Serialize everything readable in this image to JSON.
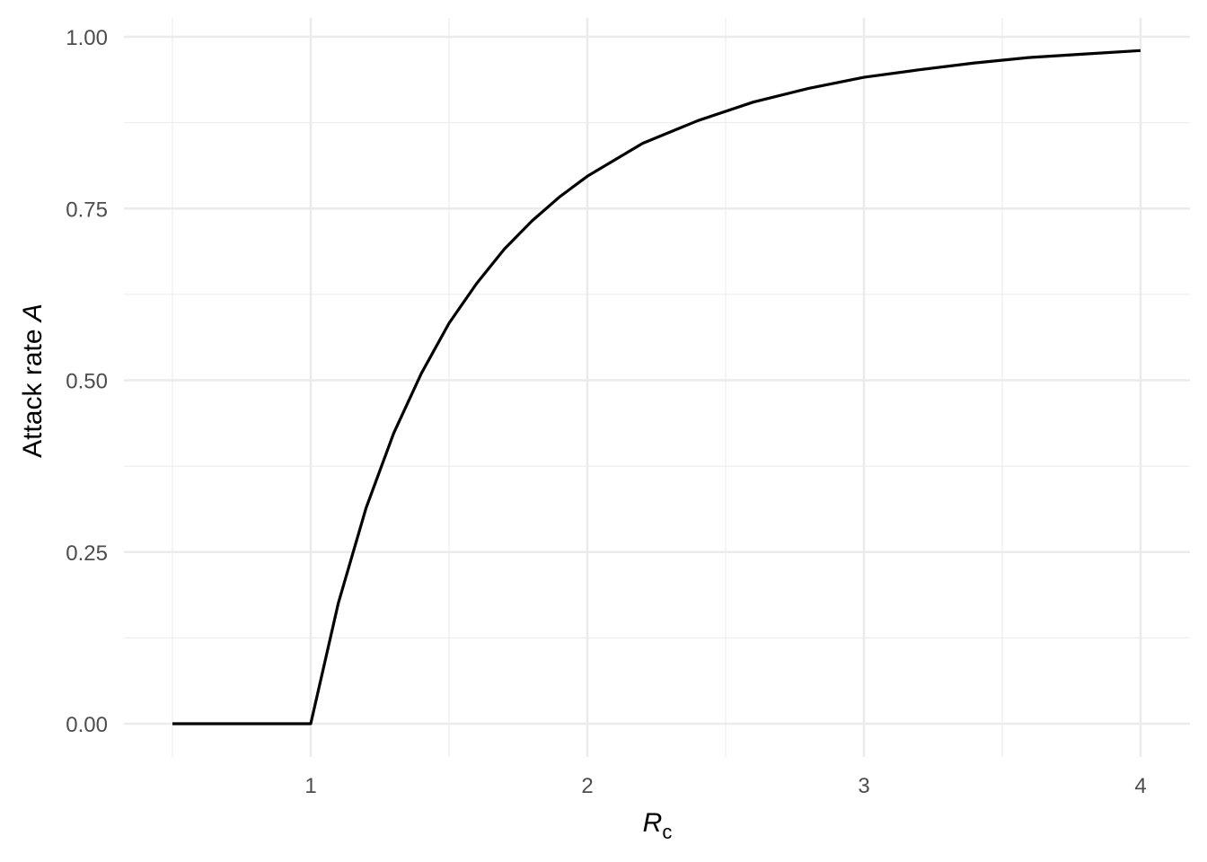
{
  "chart_data": {
    "type": "line",
    "title": "",
    "xlabel": "R",
    "xlabel_subscript": "c",
    "ylabel": "Attack rate ",
    "ylabel_italic": "A",
    "xlim": [
      0.5,
      4
    ],
    "ylim": [
      0,
      1
    ],
    "x_ticks": [
      1,
      2,
      3,
      4
    ],
    "x_tick_labels": [
      "1",
      "2",
      "3",
      "4"
    ],
    "y_ticks": [
      0,
      0.25,
      0.5,
      0.75,
      1
    ],
    "y_tick_labels": [
      "0.00",
      "0.25",
      "0.50",
      "0.75",
      "1.00"
    ],
    "grid": true,
    "line_color": "#000000",
    "grid_color": "#ebebeb",
    "series": [
      {
        "x": [
          0.5,
          0.6,
          0.7,
          0.8,
          0.9,
          1.0,
          1.1,
          1.2,
          1.3,
          1.4,
          1.5,
          1.6,
          1.7,
          1.8,
          1.9,
          2.0,
          2.2,
          2.4,
          2.6,
          2.8,
          3.0,
          3.2,
          3.4,
          3.6,
          3.8,
          4.0
        ],
        "y": [
          0,
          0,
          0,
          0,
          0,
          0,
          0.176,
          0.314,
          0.423,
          0.51,
          0.583,
          0.641,
          0.691,
          0.732,
          0.767,
          0.797,
          0.845,
          0.878,
          0.905,
          0.925,
          0.941,
          0.952,
          0.962,
          0.97,
          0.975,
          0.98
        ]
      }
    ]
  }
}
